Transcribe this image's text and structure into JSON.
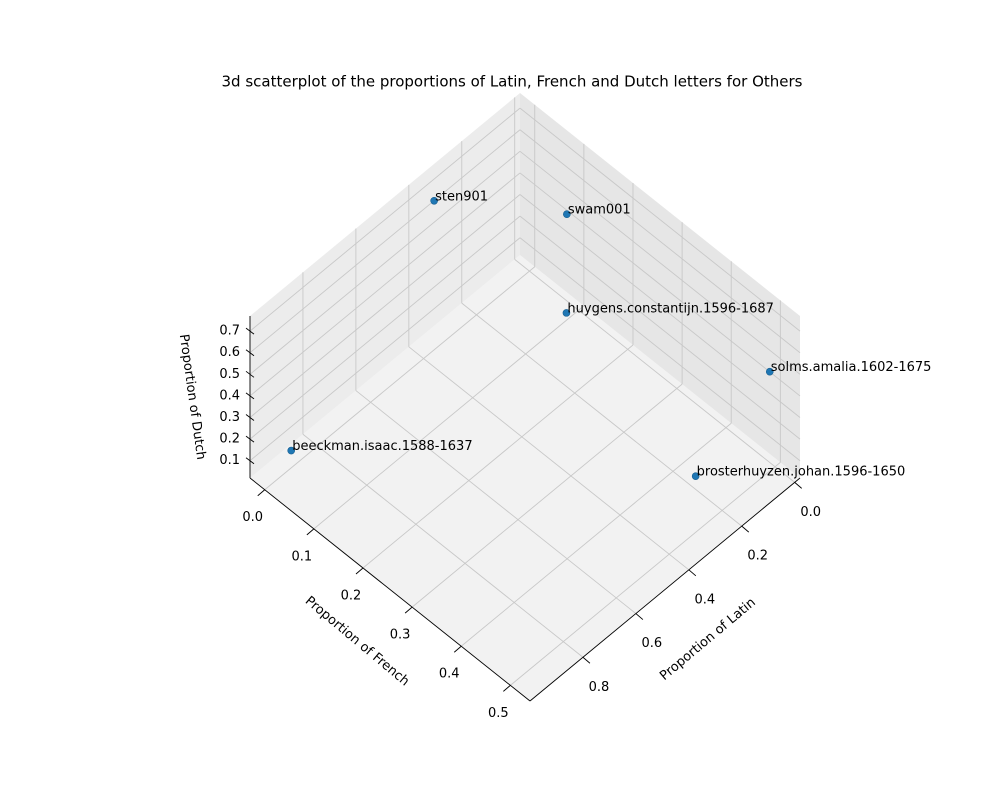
{
  "chart_data": {
    "type": "scatter3d",
    "title": "3d scatterplot of the proportions of Latin, French and Dutch letters for Others",
    "xlabel": "Proportion of Latin",
    "ylabel": "Proportion of French",
    "zlabel": "Proportion of Dutch",
    "labels": [
      "sten901",
      "swam001",
      "huygens.constantijn.1596-1687",
      "solms.amalia.1602-1675",
      "brosterhuyzen.johan.1596-1650",
      "beeckman.isaac.1588-1637"
    ],
    "x": [
      0.36,
      0.1,
      0.25,
      0.02,
      0.3,
      0.9
    ],
    "y": [
      0.0,
      0.13,
      0.21,
      0.5,
      0.5,
      0.0
    ],
    "z": [
      0.71,
      0.62,
      0.46,
      0.48,
      0.28,
      0.1
    ],
    "color": "#1f77b4",
    "xlim": [
      -0.02,
      1.0
    ],
    "ylim": [
      -0.03,
      0.54
    ],
    "zlim": [
      0.02,
      0.77
    ],
    "xticks": [
      {
        "value": 0,
        "label": "0.0"
      },
      0.2,
      0.4,
      0.6,
      0.8
    ],
    "yticks": [
      {
        "value": 0,
        "label": "0.0"
      },
      0.1,
      0.2,
      0.3,
      0.4,
      0.5
    ],
    "zticks": [
      0.1,
      0.2,
      0.3,
      0.4,
      0.5,
      0.6,
      0.7
    ],
    "grid": true
  }
}
